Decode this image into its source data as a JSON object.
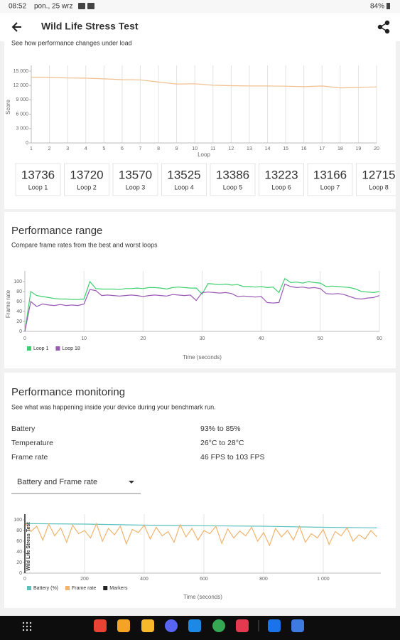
{
  "status_bar": {
    "time": "08:52",
    "date": "pon., 25 wrz",
    "battery": "84%"
  },
  "app_bar": {
    "title": "Wild Life Stress Test"
  },
  "score_card": {
    "subtitle": "See how performance changes under load",
    "tile_labels": [
      "Loop 1",
      "Loop 2",
      "Loop 3",
      "Loop 4",
      "Loop 5",
      "Loop 6",
      "Loop 7",
      "Loop 8"
    ]
  },
  "range_card": {
    "title": "Performance range",
    "subtitle": "Compare frame rates from the best and worst loops"
  },
  "monitoring_card": {
    "title": "Performance monitoring",
    "subtitle": "See what was happening inside your device during your benchmark run.",
    "rows": [
      [
        "Battery",
        "93% to 85%"
      ],
      [
        "Temperature",
        "26°C to 28°C"
      ],
      [
        "Frame rate",
        "46 FPS to 103 FPS"
      ]
    ],
    "dropdown": "Battery and Frame rate"
  },
  "chart_data": [
    {
      "type": "line",
      "x_label": "Loop",
      "y_label": "Score",
      "x": [
        1,
        2,
        3,
        4,
        5,
        6,
        7,
        8,
        9,
        10,
        11,
        12,
        13,
        14,
        15,
        16,
        17,
        18,
        19,
        20
      ],
      "series": [
        {
          "color": "#f0bf8e",
          "values": [
            13736,
            13720,
            13570,
            13525,
            13386,
            13223,
            13166,
            12715,
            12300,
            12350,
            12050,
            11950,
            11900,
            11900,
            11850,
            11750,
            11900,
            11500,
            11600,
            11700
          ]
        }
      ],
      "xlim": [
        1,
        20
      ],
      "xticks": [
        1,
        2,
        3,
        4,
        5,
        6,
        7,
        8,
        9,
        10,
        11,
        12,
        13,
        14,
        15,
        16,
        17,
        18,
        19,
        20
      ],
      "ylim": [
        0,
        15000
      ],
      "yticks": [
        0,
        {
          "value": 3000,
          "label": "3 000"
        },
        {
          "value": 6000,
          "label": "6 000"
        },
        {
          "value": 9000,
          "label": "9 000"
        },
        {
          "value": 12000,
          "label": "12 000"
        },
        {
          "value": 15000,
          "label": "15 000"
        }
      ],
      "grid": "x"
    },
    {
      "type": "line",
      "x_label": "Time (seconds)",
      "y_label": "Frame rate",
      "x": [
        0,
        1,
        2,
        3,
        4,
        5,
        6,
        7,
        8,
        9,
        10,
        11,
        12,
        13,
        14,
        15,
        16,
        17,
        18,
        19,
        20,
        21,
        22,
        23,
        24,
        25,
        26,
        27,
        28,
        29,
        30,
        31,
        32,
        33,
        34,
        35,
        36,
        37,
        38,
        39,
        40,
        41,
        42,
        43,
        44,
        45,
        46,
        47,
        48,
        49,
        50,
        51,
        52,
        53,
        54,
        55,
        56,
        57,
        58,
        59,
        60
      ],
      "series": [
        {
          "name": "Loop 1",
          "color": "#3ecf6e",
          "values": [
            0,
            80,
            72,
            70,
            68,
            66,
            65,
            65,
            64,
            64,
            65,
            100,
            86,
            85,
            85,
            85,
            84,
            86,
            86,
            87,
            86,
            88,
            88,
            87,
            85,
            88,
            89,
            88,
            87,
            87,
            75,
            96,
            95,
            94,
            95,
            93,
            94,
            90,
            90,
            89,
            90,
            88,
            89,
            78,
            106,
            98,
            99,
            97,
            100,
            98,
            97,
            90,
            91,
            90,
            89,
            88,
            85,
            80,
            79,
            78,
            80
          ]
        },
        {
          "name": "Loop 18",
          "color": "#9b59b6",
          "values": [
            0,
            60,
            50,
            55,
            53,
            52,
            54,
            52,
            53,
            52,
            55,
            84,
            82,
            72,
            73,
            72,
            71,
            72,
            73,
            72,
            70,
            72,
            73,
            72,
            71,
            74,
            73,
            72,
            73,
            62,
            78,
            79,
            78,
            77,
            78,
            76,
            70,
            71,
            70,
            69,
            70,
            58,
            57,
            58,
            95,
            90,
            88,
            89,
            87,
            88,
            86,
            76,
            75,
            76,
            74,
            70,
            66,
            65,
            67,
            68,
            72
          ]
        }
      ],
      "xlim": [
        0,
        60
      ],
      "xticks": [
        0,
        10,
        20,
        30,
        40,
        50,
        60
      ],
      "ylim": [
        0,
        110
      ],
      "yticks": [
        0,
        20,
        40,
        60,
        80,
        100
      ],
      "grid": "x",
      "legend": "bottom-left"
    },
    {
      "type": "line",
      "x_label": "Time (seconds)",
      "series": [
        {
          "name": "Battery (%)",
          "color": "#5bc0be",
          "x": [
            0,
            200,
            400,
            600,
            800,
            1000,
            1180
          ],
          "values": [
            93,
            92,
            90,
            89,
            88,
            86,
            85
          ]
        },
        {
          "name": "Frame rate",
          "color": "#f0b46e",
          "x": [
            0,
            20,
            40,
            60,
            80,
            100,
            120,
            140,
            160,
            180,
            200,
            220,
            240,
            260,
            280,
            300,
            320,
            340,
            360,
            380,
            400,
            420,
            440,
            460,
            480,
            500,
            520,
            540,
            560,
            580,
            600,
            620,
            640,
            660,
            680,
            700,
            720,
            740,
            760,
            780,
            800,
            820,
            840,
            860,
            880,
            900,
            920,
            940,
            960,
            980,
            1000,
            1020,
            1040,
            1060,
            1080,
            1100,
            1120,
            1140,
            1160,
            1180
          ],
          "values": [
            95,
            78,
            88,
            62,
            92,
            70,
            85,
            58,
            90,
            74,
            80,
            66,
            93,
            60,
            84,
            72,
            88,
            55,
            82,
            76,
            90,
            64,
            86,
            70,
            78,
            58,
            91,
            68,
            84,
            62,
            80,
            74,
            88,
            56,
            83,
            66,
            79,
            70,
            86,
            60,
            76,
            52,
            84,
            68,
            80,
            62,
            88,
            58,
            74,
            66,
            82,
            54,
            78,
            70,
            85,
            60,
            72,
            64,
            80,
            68
          ]
        },
        {
          "name": "Markers",
          "color": "#222222",
          "x": [
            0
          ],
          "labels": [
            "Wild Life Stress Test"
          ]
        }
      ],
      "xlim": [
        0,
        1193
      ],
      "xticks": [
        0,
        200,
        400,
        600,
        800,
        {
          "value": 1000,
          "label": "1 000"
        }
      ],
      "ylim": [
        0,
        100
      ],
      "yticks": [
        0,
        20,
        40,
        60,
        80,
        100
      ],
      "grid": "x",
      "legend": "bottom-left"
    }
  ]
}
